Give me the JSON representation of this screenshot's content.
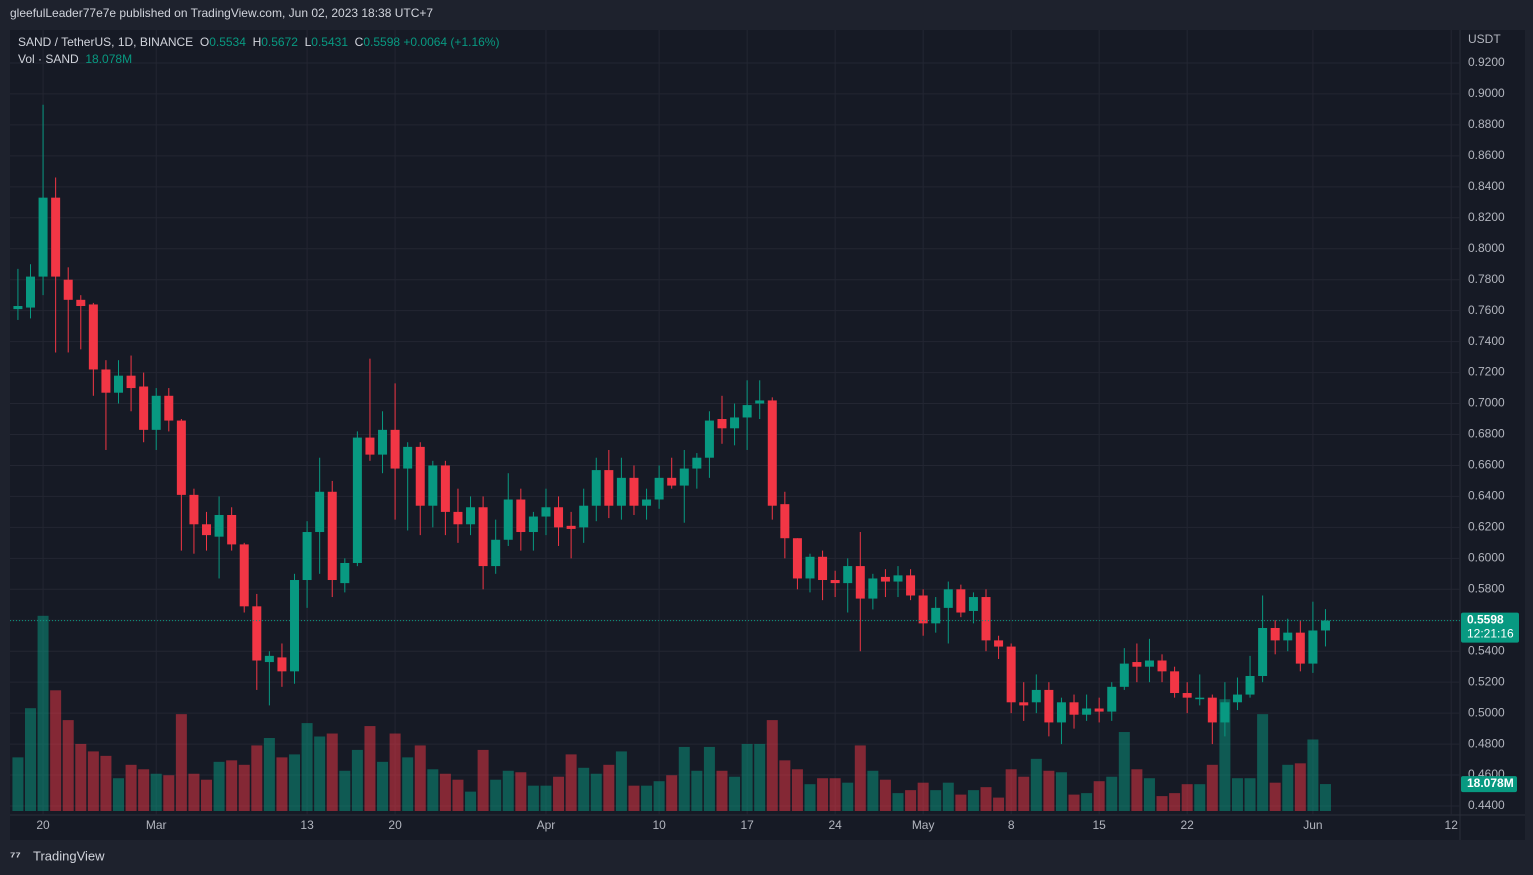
{
  "header": "gleefulLeader77e7e published on TradingView.com, Jun 02, 2023 18:38 UTC+7",
  "footer": "TradingView",
  "chart_data": {
    "type": "candlestick",
    "symbol": "SAND / TetherUS, 1D, BINANCE",
    "legend_keys": [
      "O",
      "H",
      "L",
      "C"
    ],
    "change_label": "+0.0064 (+1.16%)",
    "volume_title": "Vol · SAND",
    "volume_last_label": "18.078M",
    "countdown": "12:21:16",
    "y_axis_label": "USDT",
    "up_color": "#089981",
    "down_color": "#f23645",
    "open": [
      0.761,
      0.762,
      0.782,
      0.833,
      0.78,
      0.767,
      0.764,
      0.722,
      0.707,
      0.718,
      0.711,
      0.683,
      0.705,
      0.689,
      0.641,
      0.622,
      0.614,
      0.628,
      0.609,
      0.569,
      0.533,
      0.536,
      0.527,
      0.586,
      0.617,
      0.643,
      0.584,
      0.597,
      0.678,
      0.667,
      0.683,
      0.658,
      0.672,
      0.634,
      0.66,
      0.63,
      0.622,
      0.633,
      0.595,
      0.612,
      0.638,
      0.617,
      0.627,
      0.633,
      0.621,
      0.62,
      0.634,
      0.657,
      0.634,
      0.652,
      0.634,
      0.638,
      0.652,
      0.647,
      0.658,
      0.665,
      0.69,
      0.684,
      0.691,
      0.7,
      0.702,
      0.635,
      0.613,
      0.587,
      0.601,
      0.586,
      0.584,
      0.595,
      0.574,
      0.588,
      0.585,
      0.589,
      0.576,
      0.558,
      0.568,
      0.58,
      0.566,
      0.575,
      0.547,
      0.543,
      0.507,
      0.507,
      0.515,
      0.494,
      0.507,
      0.499,
      0.503,
      0.501,
      0.517,
      0.533,
      0.53,
      0.534,
      0.527,
      0.513,
      0.509,
      0.51,
      0.494,
      0.507,
      0.512,
      0.524,
      0.555,
      0.547,
      0.552,
      0.532,
      0.5534
    ],
    "high": [
      0.787,
      0.79,
      0.893,
      0.846,
      0.788,
      0.77,
      0.765,
      0.728,
      0.728,
      0.731,
      0.72,
      0.71,
      0.71,
      0.69,
      0.645,
      0.63,
      0.64,
      0.633,
      0.61,
      0.577,
      0.54,
      0.545,
      0.59,
      0.624,
      0.665,
      0.65,
      0.6,
      0.682,
      0.729,
      0.695,
      0.713,
      0.675,
      0.675,
      0.663,
      0.663,
      0.645,
      0.64,
      0.64,
      0.625,
      0.655,
      0.645,
      0.63,
      0.645,
      0.64,
      0.63,
      0.645,
      0.665,
      0.67,
      0.665,
      0.66,
      0.645,
      0.66,
      0.665,
      0.67,
      0.668,
      0.695,
      0.705,
      0.7,
      0.715,
      0.715,
      0.704,
      0.643,
      0.613,
      0.603,
      0.605,
      0.592,
      0.6,
      0.617,
      0.59,
      0.593,
      0.595,
      0.593,
      0.58,
      0.575,
      0.585,
      0.583,
      0.578,
      0.58,
      0.55,
      0.545,
      0.52,
      0.525,
      0.52,
      0.51,
      0.512,
      0.512,
      0.51,
      0.52,
      0.542,
      0.545,
      0.548,
      0.538,
      0.53,
      0.52,
      0.525,
      0.512,
      0.52,
      0.523,
      0.537,
      0.576,
      0.56,
      0.561,
      0.56,
      0.572,
      0.5672
    ],
    "low": [
      0.754,
      0.755,
      0.77,
      0.733,
      0.733,
      0.735,
      0.705,
      0.67,
      0.7,
      0.695,
      0.675,
      0.67,
      0.682,
      0.605,
      0.603,
      0.605,
      0.587,
      0.605,
      0.565,
      0.515,
      0.505,
      0.517,
      0.519,
      0.568,
      0.59,
      0.575,
      0.578,
      0.595,
      0.663,
      0.655,
      0.625,
      0.618,
      0.615,
      0.62,
      0.615,
      0.61,
      0.615,
      0.58,
      0.59,
      0.608,
      0.605,
      0.605,
      0.615,
      0.608,
      0.6,
      0.61,
      0.624,
      0.626,
      0.625,
      0.628,
      0.625,
      0.632,
      0.645,
      0.623,
      0.645,
      0.652,
      0.674,
      0.673,
      0.67,
      0.69,
      0.625,
      0.6,
      0.58,
      0.578,
      0.573,
      0.575,
      0.565,
      0.54,
      0.567,
      0.575,
      0.575,
      0.573,
      0.55,
      0.552,
      0.545,
      0.562,
      0.558,
      0.54,
      0.535,
      0.5,
      0.495,
      0.5,
      0.485,
      0.48,
      0.49,
      0.495,
      0.494,
      0.495,
      0.515,
      0.52,
      0.52,
      0.52,
      0.51,
      0.5,
      0.505,
      0.48,
      0.485,
      0.502,
      0.51,
      0.52,
      0.538,
      0.54,
      0.527,
      0.526,
      0.5431
    ],
    "close": [
      0.763,
      0.782,
      0.833,
      0.782,
      0.767,
      0.763,
      0.722,
      0.707,
      0.718,
      0.71,
      0.683,
      0.705,
      0.689,
      0.641,
      0.622,
      0.615,
      0.628,
      0.609,
      0.569,
      0.534,
      0.537,
      0.527,
      0.586,
      0.617,
      0.643,
      0.586,
      0.597,
      0.678,
      0.667,
      0.683,
      0.658,
      0.672,
      0.634,
      0.66,
      0.63,
      0.622,
      0.633,
      0.595,
      0.612,
      0.638,
      0.617,
      0.627,
      0.633,
      0.62,
      0.619,
      0.634,
      0.657,
      0.634,
      0.652,
      0.634,
      0.638,
      0.652,
      0.647,
      0.658,
      0.665,
      0.689,
      0.684,
      0.691,
      0.699,
      0.702,
      0.634,
      0.613,
      0.587,
      0.601,
      0.586,
      0.584,
      0.595,
      0.574,
      0.587,
      0.585,
      0.589,
      0.576,
      0.558,
      0.568,
      0.58,
      0.565,
      0.575,
      0.547,
      0.543,
      0.507,
      0.505,
      0.515,
      0.494,
      0.507,
      0.499,
      0.503,
      0.501,
      0.517,
      0.532,
      0.53,
      0.534,
      0.527,
      0.513,
      0.51,
      0.51,
      0.494,
      0.507,
      0.512,
      0.524,
      0.555,
      0.547,
      0.552,
      0.532,
      0.5534,
      0.5598
    ],
    "volume": [
      36,
      69,
      131,
      81,
      61,
      45,
      40,
      37,
      22,
      31,
      28,
      25,
      24,
      65,
      25,
      21,
      33,
      34,
      31,
      44,
      49,
      36,
      38,
      59,
      50,
      52,
      27,
      41,
      57,
      33,
      52,
      36,
      44,
      28,
      25,
      21,
      13,
      41,
      21,
      27,
      26,
      17,
      17,
      23,
      38,
      29,
      25,
      31,
      40,
      17,
      17,
      20,
      24,
      43,
      27,
      43,
      27,
      23,
      45,
      45,
      61,
      34,
      28,
      18,
      22,
      22,
      19,
      44,
      27,
      21,
      12,
      14,
      19,
      14,
      19,
      11,
      14,
      16,
      9,
      28,
      23,
      35,
      27,
      26,
      11,
      12,
      20,
      23,
      53,
      28,
      22,
      10,
      12,
      18,
      18,
      31,
      75,
      22,
      22,
      65,
      19,
      31,
      32,
      48,
      18.078
    ],
    "xlim": [
      -0.63,
      114.7
    ],
    "xticks": [
      {
        "value": 2,
        "label": "20"
      },
      {
        "value": 11,
        "label": "Mar"
      },
      {
        "value": 23,
        "label": "13"
      },
      {
        "value": 30,
        "label": "20"
      },
      {
        "value": 42,
        "label": "Apr"
      },
      {
        "value": 51,
        "label": "10"
      },
      {
        "value": 58,
        "label": "17"
      },
      {
        "value": 65,
        "label": "24"
      },
      {
        "value": 72,
        "label": "May"
      },
      {
        "value": 79,
        "label": "8"
      },
      {
        "value": 86,
        "label": "15"
      },
      {
        "value": 93,
        "label": "22"
      },
      {
        "value": 103,
        "label": "Jun"
      },
      {
        "value": 114,
        "label": "12"
      }
    ],
    "ylim": [
      0.4342,
      0.9413
    ],
    "yticks": [
      {
        "value": 0.44,
        "label": "0.4400"
      },
      {
        "value": 0.46,
        "label": "0.4600"
      },
      {
        "value": 0.48,
        "label": "0.4800"
      },
      {
        "value": 0.5,
        "label": "0.5000"
      },
      {
        "value": 0.52,
        "label": "0.5200"
      },
      {
        "value": 0.54,
        "label": "0.5400"
      },
      {
        "value": 0.56,
        "label": "0.5600"
      },
      {
        "value": 0.58,
        "label": "0.5800"
      },
      {
        "value": 0.6,
        "label": "0.6000"
      },
      {
        "value": 0.62,
        "label": "0.6200"
      },
      {
        "value": 0.64,
        "label": "0.6400"
      },
      {
        "value": 0.66,
        "label": "0.6600"
      },
      {
        "value": 0.68,
        "label": "0.6800"
      },
      {
        "value": 0.7,
        "label": "0.7000"
      },
      {
        "value": 0.72,
        "label": "0.7200"
      },
      {
        "value": 0.74,
        "label": "0.7400"
      },
      {
        "value": 0.76,
        "label": "0.7600"
      },
      {
        "value": 0.78,
        "label": "0.7800"
      },
      {
        "value": 0.8,
        "label": "0.8000"
      },
      {
        "value": 0.82,
        "label": "0.8200"
      },
      {
        "value": 0.84,
        "label": "0.8400"
      },
      {
        "value": 0.86,
        "label": "0.8600"
      },
      {
        "value": 0.88,
        "label": "0.8800"
      },
      {
        "value": 0.9,
        "label": "0.9000"
      },
      {
        "value": 0.92,
        "label": "0.9200"
      }
    ],
    "grid": true
  }
}
